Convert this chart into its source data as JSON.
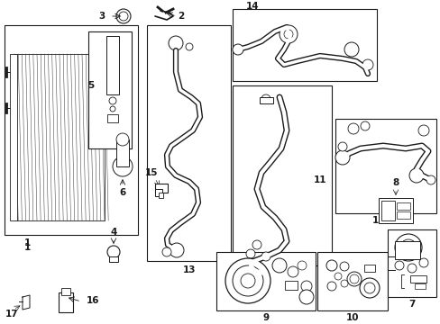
{
  "bg_color": "#ffffff",
  "line_color": "#1a1a1a",
  "fig_width": 4.89,
  "fig_height": 3.6,
  "dpi": 100,
  "gray": "#555555",
  "light_gray": "#aaaaaa"
}
